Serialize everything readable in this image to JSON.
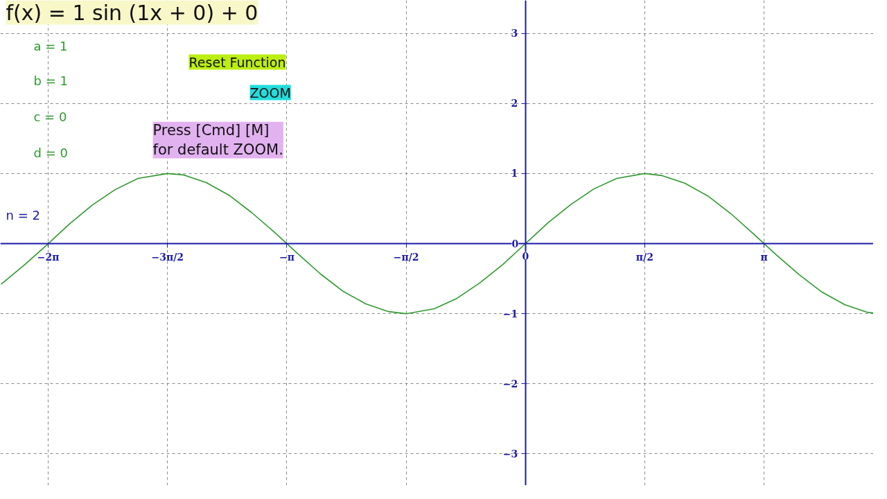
{
  "chart_data": {
    "type": "line",
    "x": [
      -6.9,
      -6.6,
      -6.3,
      -6.0,
      -5.7,
      -5.4,
      -5.1,
      -4.71,
      -4.5,
      -4.2,
      -3.9,
      -3.6,
      -3.3,
      -3.0,
      -2.7,
      -2.4,
      -2.1,
      -1.8,
      -1.57,
      -1.2,
      -0.9,
      -0.6,
      -0.3,
      0,
      0.3,
      0.6,
      0.9,
      1.2,
      1.57,
      1.8,
      2.1,
      2.4,
      2.7,
      3.0,
      3.3,
      3.6,
      3.9,
      4.2,
      4.5,
      4.58
    ],
    "series": [
      {
        "color": "#2e9a2e",
        "values": [
          -0.58,
          -0.31,
          -0.02,
          0.28,
          0.55,
          0.77,
          0.93,
          1.0,
          0.98,
          0.87,
          0.69,
          0.44,
          0.16,
          -0.14,
          -0.43,
          -0.68,
          -0.86,
          -0.97,
          -1.0,
          -0.93,
          -0.78,
          -0.56,
          -0.3,
          0,
          0.3,
          0.56,
          0.78,
          0.93,
          1.0,
          0.97,
          0.86,
          0.68,
          0.43,
          0.14,
          -0.16,
          -0.44,
          -0.69,
          -0.87,
          -0.98,
          -0.99
        ]
      }
    ],
    "xlim": [
      -6.91,
      4.58
    ],
    "ylim": [
      -3.45,
      3.47
    ],
    "xticks": [
      {
        "value": -6.28,
        "label": "−2π"
      },
      {
        "value": -4.71,
        "label": "−3π/2"
      },
      {
        "value": -3.14,
        "label": "−π"
      },
      {
        "value": -1.57,
        "label": "−π/2"
      },
      0,
      {
        "value": 1.57,
        "label": "π/2"
      },
      {
        "value": 3.14,
        "label": "π"
      }
    ],
    "yticks": [
      -3,
      -2,
      -1,
      0,
      1,
      2,
      3
    ],
    "grid": true,
    "marker": "none",
    "line_style": "solid",
    "annotations": [
      "f(x) = 1 sin (1x + 0) + 0",
      "a = 1",
      "b = 1",
      "c = 0",
      "d = 0",
      "Reset Function",
      "ZOOM",
      "Press [Cmd] [M]\nfor default ZOOM.",
      "n = 2"
    ]
  }
}
